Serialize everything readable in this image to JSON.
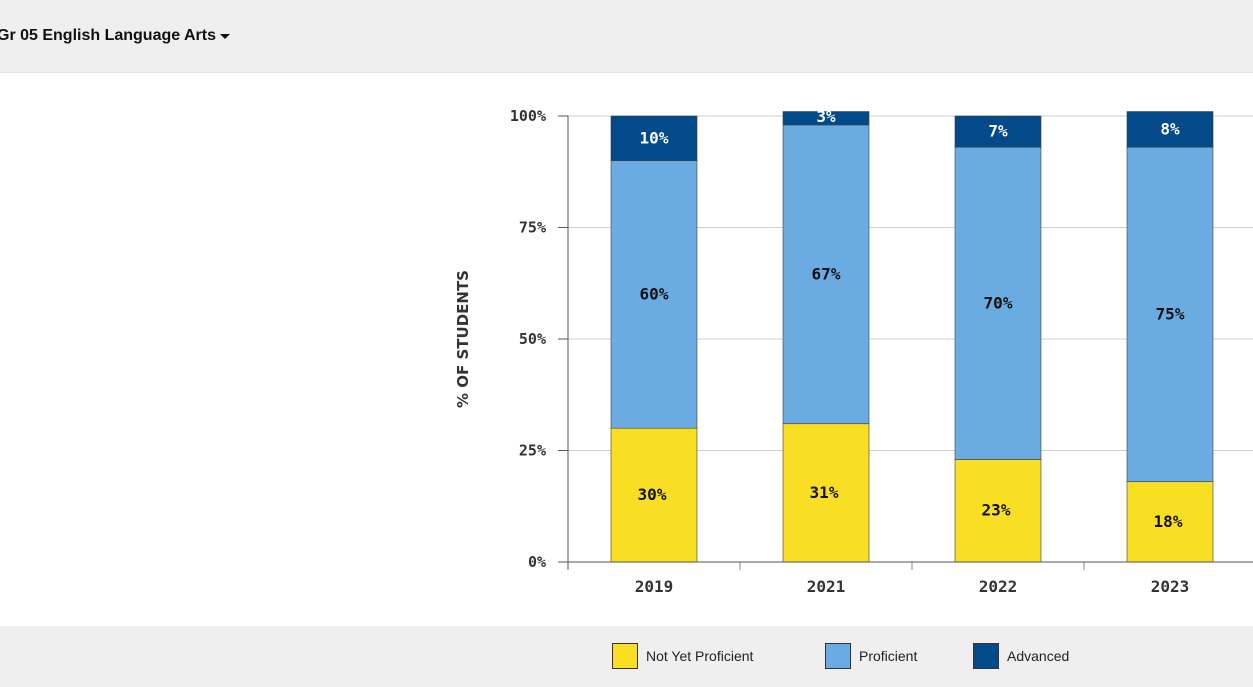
{
  "header": {
    "subject_label": "Gr 05 English Language Arts"
  },
  "legend": {
    "items": [
      {
        "label": "Not Yet Proficient",
        "color": "#f9df23"
      },
      {
        "label": "Proficient",
        "color": "#6aabe2"
      },
      {
        "label": "Advanced",
        "color": "#034a8b"
      }
    ]
  },
  "chart_data": {
    "type": "bar",
    "stacked": true,
    "ylabel": "% OF STUDENTS",
    "xlabel": "",
    "ylim": [
      0,
      100
    ],
    "yticks": [
      "0%",
      "25%",
      "50%",
      "75%",
      "100%"
    ],
    "grid": true,
    "categories": [
      "2019",
      "2021",
      "2022",
      "2023"
    ],
    "series": [
      {
        "name": "Not Yet Proficient",
        "color": "#f9df23",
        "label_color": "#111111",
        "values": [
          30,
          31,
          23,
          18
        ],
        "labels": [
          "30%",
          "31%",
          "23%",
          "18%"
        ]
      },
      {
        "name": "Proficient",
        "color": "#6aabe2",
        "label_color": "#111111",
        "values": [
          60,
          67,
          70,
          75
        ],
        "labels": [
          "60%",
          "67%",
          "70%",
          "75%"
        ]
      },
      {
        "name": "Advanced",
        "color": "#034a8b",
        "label_color": "#ffffff",
        "values": [
          10,
          3,
          7,
          8
        ],
        "labels": [
          "10%",
          "3%",
          "7%",
          "8%"
        ]
      }
    ],
    "legend_position": "bottom"
  }
}
